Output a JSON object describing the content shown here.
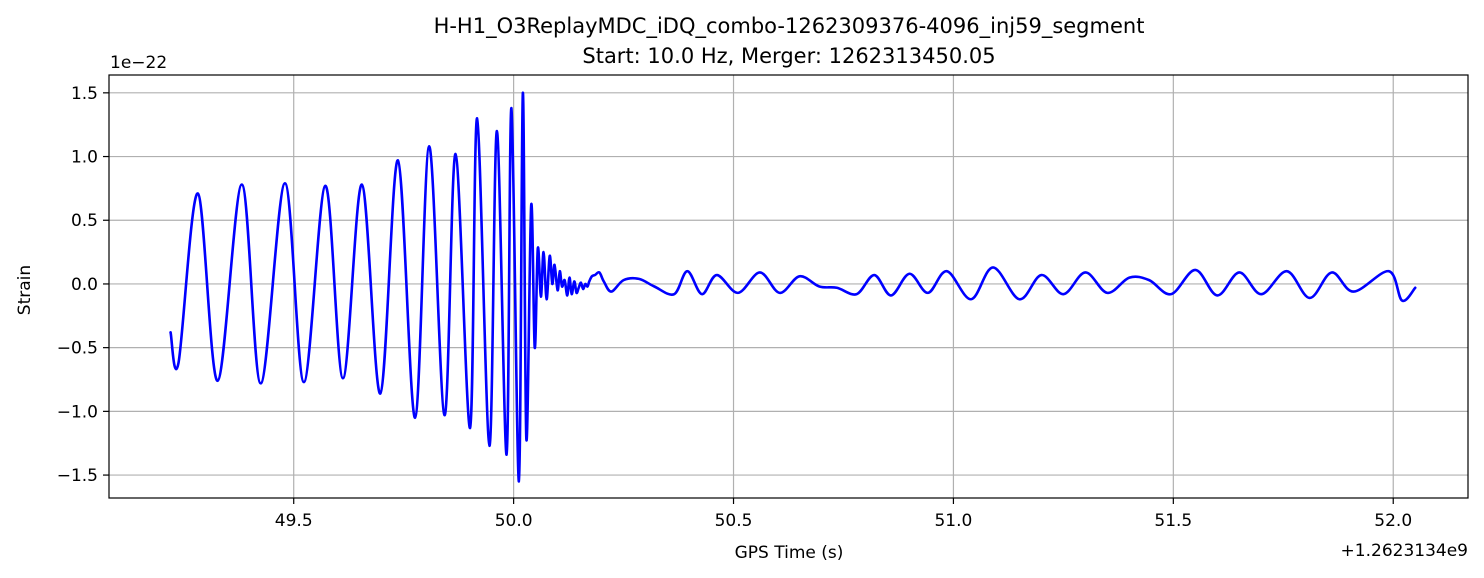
{
  "chart_data": {
    "type": "line",
    "title": "H-H1_O3ReplayMDC_iDQ_combo-1262309376-4096_inj59_segment",
    "subtitle": "Start: 10.0 Hz, Merger: 1262313450.05",
    "xlabel": "GPS Time (s)",
    "ylabel": "Strain",
    "x_offset_text": "+1.2623134e9",
    "y_scale_text": "1e−22",
    "xlim": [
      49.08,
      52.17
    ],
    "ylim": [
      -1.68,
      1.64
    ],
    "x_ticks": [
      49.5,
      50.0,
      50.5,
      51.0,
      51.5,
      52.0
    ],
    "x_tick_labels": [
      "49.5",
      "50.0",
      "50.5",
      "51.0",
      "51.5",
      "52.0"
    ],
    "y_ticks": [
      -1.5,
      -1.0,
      -0.5,
      0.0,
      0.5,
      1.0,
      1.5
    ],
    "y_tick_labels": [
      "−1.5",
      "−1.0",
      "−0.5",
      "0.0",
      "0.5",
      "1.0",
      "1.5"
    ],
    "grid": true,
    "line_color": "#0000ff",
    "series": [
      {
        "x": [
          49.22,
          49.238,
          49.282,
          49.327,
          49.382,
          49.425,
          49.48,
          49.523,
          49.572,
          49.612,
          49.655,
          49.697,
          49.737,
          49.776,
          49.808,
          49.843,
          49.868,
          49.901,
          49.917,
          49.945,
          49.962,
          49.984,
          49.995,
          50.012,
          50.021,
          50.029,
          50.04,
          50.048,
          50.055,
          50.062,
          50.068,
          50.075,
          50.082,
          50.088,
          50.093,
          50.1,
          50.105,
          50.11,
          50.116,
          50.122,
          50.127,
          50.132,
          50.138,
          50.143,
          50.148,
          50.153,
          50.158,
          50.163,
          50.168,
          50.172,
          50.178,
          50.185,
          50.195,
          50.205,
          50.222,
          50.25,
          50.285,
          50.32,
          50.365,
          50.395,
          50.428,
          50.462,
          50.51,
          50.56,
          50.605,
          50.65,
          50.695,
          50.735,
          50.78,
          50.82,
          50.858,
          50.9,
          50.942,
          50.985,
          51.04,
          51.09,
          51.15,
          51.2,
          51.25,
          51.3,
          51.35,
          51.4,
          51.445,
          51.495,
          51.55,
          51.6,
          51.65,
          51.7,
          51.758,
          51.81,
          51.86,
          51.91,
          51.99,
          52.02,
          52.05
        ],
        "y": [
          -0.38,
          -0.62,
          0.71,
          -0.76,
          0.78,
          -0.78,
          0.79,
          -0.77,
          0.77,
          -0.74,
          0.78,
          -0.86,
          0.97,
          -1.05,
          1.08,
          -1.03,
          1.02,
          -1.13,
          1.3,
          -1.27,
          1.2,
          -1.34,
          1.38,
          -1.55,
          1.5,
          -1.22,
          0.62,
          -0.5,
          0.28,
          -0.1,
          0.25,
          -0.12,
          0.22,
          0.0,
          0.15,
          -0.05,
          0.1,
          -0.02,
          0.03,
          -0.09,
          0.05,
          -0.08,
          0.02,
          -0.07,
          -0.03,
          0.01,
          -0.04,
          0.0,
          -0.02,
          0.02,
          0.06,
          0.07,
          0.09,
          0.02,
          -0.06,
          0.03,
          0.04,
          -0.02,
          -0.08,
          0.1,
          -0.08,
          0.07,
          -0.07,
          0.09,
          -0.07,
          0.06,
          -0.02,
          -0.03,
          -0.08,
          0.07,
          -0.09,
          0.08,
          -0.07,
          0.1,
          -0.12,
          0.13,
          -0.12,
          0.07,
          -0.08,
          0.09,
          -0.07,
          0.05,
          0.03,
          -0.08,
          0.11,
          -0.09,
          0.09,
          -0.08,
          0.1,
          -0.11,
          0.09,
          -0.06,
          0.1,
          -0.13,
          -0.03
        ]
      }
    ]
  }
}
